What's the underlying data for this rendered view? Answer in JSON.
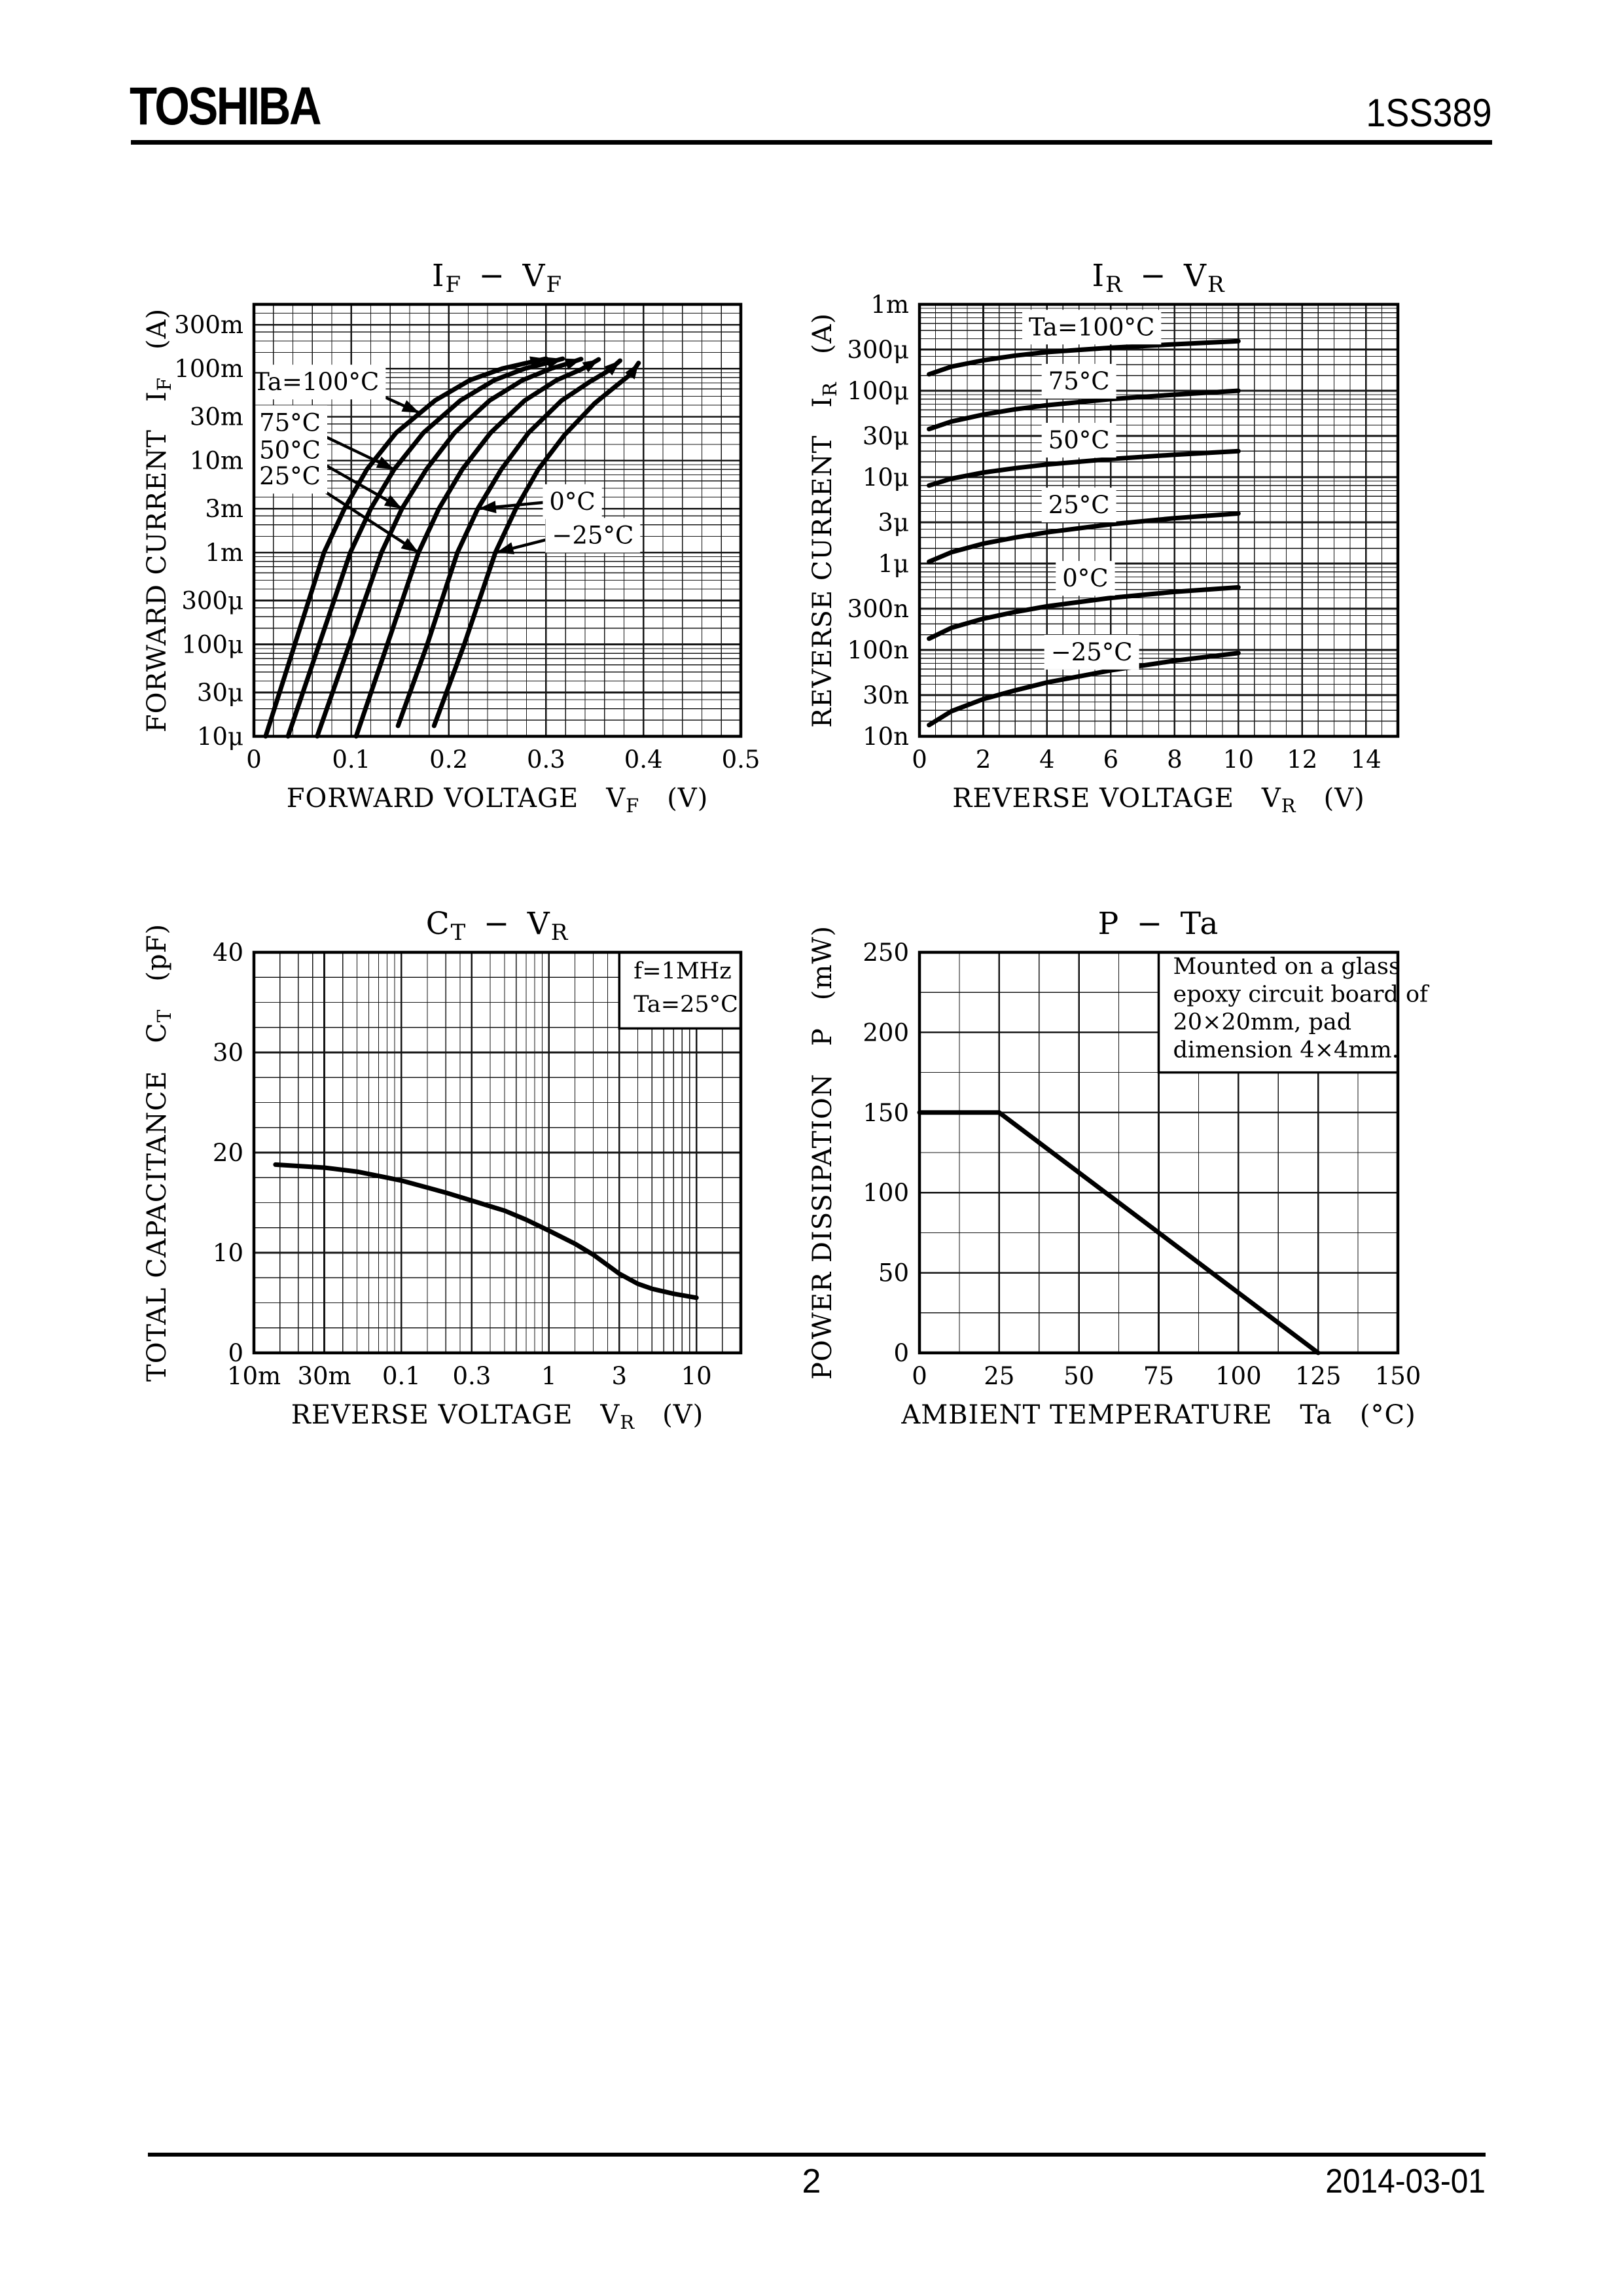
{
  "header": {
    "logo": "TOSHIBA",
    "part_number": "1SS389"
  },
  "footer": {
    "page_number": "2",
    "date": "2014-03-01"
  },
  "colors": {
    "ink": "#000000",
    "paper": "#ffffff",
    "grid": "#161616"
  },
  "chart_data": [
    {
      "id": "if-vf",
      "type": "line",
      "title": "I~F~ − V~F~",
      "x": {
        "scale": "linear",
        "min": 0,
        "max": 0.5,
        "minor": 0.02,
        "major": 0.1,
        "label": "FORWARD VOLTAGE  V~F~  (V)",
        "ticks": [
          {
            "v": 0,
            "label": "0"
          },
          {
            "v": 0.1,
            "label": "0.1"
          },
          {
            "v": 0.2,
            "label": "0.2"
          },
          {
            "v": 0.3,
            "label": "0.3"
          },
          {
            "v": 0.4,
            "label": "0.4"
          },
          {
            "v": 0.5,
            "label": "0.5"
          }
        ]
      },
      "y": {
        "scale": "log",
        "min": 1e-05,
        "max": 0.5,
        "label": "FORWARD CURRENT  I~F~  (A)",
        "ticks": [
          {
            "v": 0.3,
            "label": "300m"
          },
          {
            "v": 0.1,
            "label": "100m"
          },
          {
            "v": 0.03,
            "label": "30m"
          },
          {
            "v": 0.01,
            "label": "10m"
          },
          {
            "v": 0.003,
            "label": "3m"
          },
          {
            "v": 0.001,
            "label": "1m"
          },
          {
            "v": 0.0003,
            "label": "300μ"
          },
          {
            "v": 0.0001,
            "label": "100μ"
          },
          {
            "v": 3e-05,
            "label": "30μ"
          },
          {
            "v": 1e-05,
            "label": "10μ"
          }
        ]
      },
      "series": [
        {
          "name": "Ta=100°C",
          "arrow": true,
          "points": [
            [
              0.012,
              1e-05
            ],
            [
              0.042,
              0.0001
            ],
            [
              0.072,
              0.001
            ],
            [
              0.093,
              0.003
            ],
            [
              0.116,
              0.008
            ],
            [
              0.146,
              0.02
            ],
            [
              0.186,
              0.045
            ],
            [
              0.222,
              0.075
            ],
            [
              0.255,
              0.1
            ],
            [
              0.28,
              0.115
            ],
            [
              0.3,
              0.128
            ]
          ]
        },
        {
          "name": "75°C",
          "arrow": true,
          "points": [
            [
              0.035,
              1e-05
            ],
            [
              0.067,
              0.0001
            ],
            [
              0.099,
              0.001
            ],
            [
              0.12,
              0.003
            ],
            [
              0.144,
              0.008
            ],
            [
              0.174,
              0.02
            ],
            [
              0.212,
              0.045
            ],
            [
              0.247,
              0.075
            ],
            [
              0.278,
              0.1
            ],
            [
              0.301,
              0.115
            ],
            [
              0.317,
              0.128
            ]
          ]
        },
        {
          "name": "50°C",
          "arrow": true,
          "points": [
            [
              0.065,
              1e-05
            ],
            [
              0.098,
              0.0001
            ],
            [
              0.131,
              0.001
            ],
            [
              0.152,
              0.003
            ],
            [
              0.177,
              0.008
            ],
            [
              0.206,
              0.02
            ],
            [
              0.242,
              0.045
            ],
            [
              0.276,
              0.075
            ],
            [
              0.305,
              0.1
            ],
            [
              0.323,
              0.114
            ],
            [
              0.336,
              0.127
            ]
          ]
        },
        {
          "name": "25°C",
          "arrow": true,
          "points": [
            [
              0.105,
              1e-05
            ],
            [
              0.137,
              0.0001
            ],
            [
              0.169,
              0.001
            ],
            [
              0.19,
              0.003
            ],
            [
              0.214,
              0.008
            ],
            [
              0.243,
              0.02
            ],
            [
              0.278,
              0.045
            ],
            [
              0.311,
              0.075
            ],
            [
              0.336,
              0.098
            ],
            [
              0.346,
              0.112
            ],
            [
              0.354,
              0.126
            ]
          ]
        },
        {
          "name": "0°C",
          "arrow": true,
          "points": [
            [
              0.148,
              1.3e-05
            ],
            [
              0.178,
              0.0001
            ],
            [
              0.209,
              0.001
            ],
            [
              0.23,
              0.003
            ],
            [
              0.254,
              0.008
            ],
            [
              0.282,
              0.02
            ],
            [
              0.316,
              0.045
            ],
            [
              0.345,
              0.072
            ],
            [
              0.362,
              0.092
            ],
            [
              0.369,
              0.105
            ],
            [
              0.376,
              0.122
            ]
          ]
        },
        {
          "name": "−25°C",
          "arrow": true,
          "points": [
            [
              0.185,
              1.3e-05
            ],
            [
              0.216,
              0.0001
            ],
            [
              0.248,
              0.001
            ],
            [
              0.269,
              0.003
            ],
            [
              0.292,
              0.008
            ],
            [
              0.319,
              0.019
            ],
            [
              0.35,
              0.042
            ],
            [
              0.372,
              0.065
            ],
            [
              0.384,
              0.082
            ],
            [
              0.39,
              0.096
            ],
            [
              0.395,
              0.115
            ]
          ]
        }
      ],
      "curve_labels": [
        {
          "text": "Ta=100°C",
          "x": 0.064,
          "y": 0.072,
          "arrow": {
            "from": [
              0.116,
              0.06
            ],
            "to": [
              0.17,
              0.033
            ]
          }
        },
        {
          "text": "75°C",
          "x": 0.037,
          "y": 0.026,
          "arrow": {
            "from": [
              0.057,
              0.022
            ],
            "to": [
              0.144,
              0.008
            ]
          }
        },
        {
          "text": "50°C",
          "x": 0.037,
          "y": 0.013,
          "arrow": {
            "from": [
              0.057,
              0.0112
            ],
            "to": [
              0.152,
              0.003
            ]
          }
        },
        {
          "text": "25°C",
          "x": 0.037,
          "y": 0.0068,
          "arrow": {
            "from": [
              0.057,
              0.0059
            ],
            "to": [
              0.169,
              0.001
            ]
          }
        },
        {
          "text": "0°C",
          "x": 0.327,
          "y": 0.0036,
          "arrow": {
            "from": [
              0.298,
              0.0035
            ],
            "to": [
              0.231,
              0.003
            ]
          }
        },
        {
          "text": "−25°C",
          "x": 0.348,
          "y": 0.00155,
          "arrow": {
            "from": [
              0.303,
              0.0014
            ],
            "to": [
              0.249,
              0.001
            ]
          }
        }
      ]
    },
    {
      "id": "ir-vr",
      "type": "line",
      "title": "I~R~ − V~R~",
      "x": {
        "scale": "linear",
        "min": 0,
        "max": 15,
        "minor": 0.5,
        "major": 2,
        "label": "REVERSE VOLTAGE  V~R~  (V)",
        "ticks": [
          {
            "v": 0,
            "label": "0"
          },
          {
            "v": 2,
            "label": "2"
          },
          {
            "v": 4,
            "label": "4"
          },
          {
            "v": 6,
            "label": "6"
          },
          {
            "v": 8,
            "label": "8"
          },
          {
            "v": 10,
            "label": "10"
          },
          {
            "v": 12,
            "label": "12"
          },
          {
            "v": 14,
            "label": "14"
          }
        ]
      },
      "y": {
        "scale": "log",
        "min": 1e-08,
        "max": 0.001,
        "label": "REVERSE CURRENT  I~R~  (A)",
        "ticks": [
          {
            "v": 0.001,
            "label": "1m"
          },
          {
            "v": 0.0003,
            "label": "300μ"
          },
          {
            "v": 0.0001,
            "label": "100μ"
          },
          {
            "v": 3e-05,
            "label": "30μ"
          },
          {
            "v": 1e-05,
            "label": "10μ"
          },
          {
            "v": 3e-06,
            "label": "3μ"
          },
          {
            "v": 1e-06,
            "label": "1μ"
          },
          {
            "v": 3e-07,
            "label": "300n"
          },
          {
            "v": 1e-07,
            "label": "100n"
          },
          {
            "v": 3e-08,
            "label": "30n"
          },
          {
            "v": 1e-08,
            "label": "10n"
          }
        ]
      },
      "series": [
        {
          "name": "Ta=100°C",
          "points": [
            [
              0.3,
              0.000155
            ],
            [
              1,
              0.00019
            ],
            [
              2,
              0.000225
            ],
            [
              3,
              0.000255
            ],
            [
              4,
              0.00028
            ],
            [
              6,
              0.000315
            ],
            [
              8,
              0.000345
            ],
            [
              10,
              0.000375
            ]
          ]
        },
        {
          "name": "75°C",
          "points": [
            [
              0.3,
              3.6e-05
            ],
            [
              1,
              4.4e-05
            ],
            [
              2,
              5.3e-05
            ],
            [
              3,
              6.1e-05
            ],
            [
              4,
              6.8e-05
            ],
            [
              6,
              8e-05
            ],
            [
              8,
              9e-05
            ],
            [
              10,
              0.0001
            ]
          ]
        },
        {
          "name": "50°C",
          "points": [
            [
              0.3,
              8e-06
            ],
            [
              1,
              9.6e-06
            ],
            [
              2,
              1.13e-05
            ],
            [
              3,
              1.27e-05
            ],
            [
              4,
              1.4e-05
            ],
            [
              6,
              1.62e-05
            ],
            [
              8,
              1.82e-05
            ],
            [
              10,
              2e-05
            ]
          ]
        },
        {
          "name": "25°C",
          "points": [
            [
              0.3,
              1.05e-06
            ],
            [
              1,
              1.35e-06
            ],
            [
              2,
              1.7e-06
            ],
            [
              3,
              2e-06
            ],
            [
              4,
              2.3e-06
            ],
            [
              6,
              2.85e-06
            ],
            [
              8,
              3.35e-06
            ],
            [
              10,
              3.8e-06
            ]
          ]
        },
        {
          "name": "0°C",
          "points": [
            [
              0.3,
              1.35e-07
            ],
            [
              1,
              1.8e-07
            ],
            [
              2,
              2.3e-07
            ],
            [
              3,
              2.75e-07
            ],
            [
              4,
              3.2e-07
            ],
            [
              6,
              4e-07
            ],
            [
              8,
              4.7e-07
            ],
            [
              10,
              5.3e-07
            ]
          ]
        },
        {
          "name": "−25°C",
          "points": [
            [
              0.3,
              1.35e-08
            ],
            [
              1,
              1.95e-08
            ],
            [
              2,
              2.7e-08
            ],
            [
              3,
              3.4e-08
            ],
            [
              4,
              4.2e-08
            ],
            [
              6,
              5.8e-08
            ],
            [
              8,
              7.5e-08
            ],
            [
              10,
              9.2e-08
            ]
          ]
        }
      ],
      "curve_labels": [
        {
          "text": "Ta=100°C",
          "x": 5.4,
          "y": 0.00055
        },
        {
          "text": "75°C",
          "x": 5.0,
          "y": 0.00013
        },
        {
          "text": "50°C",
          "x": 5.0,
          "y": 2.7e-05
        },
        {
          "text": "25°C",
          "x": 5.0,
          "y": 4.8e-06
        },
        {
          "text": "0°C",
          "x": 5.2,
          "y": 6.8e-07
        },
        {
          "text": "−25°C",
          "x": 5.4,
          "y": 9.5e-08
        }
      ]
    },
    {
      "id": "ct-vr",
      "type": "line",
      "title": "C~T~ − V~R~",
      "x": {
        "scale": "log",
        "min": 0.01,
        "max": 20,
        "label": "REVERSE VOLTAGE  V~R~  (V)",
        "ticks": [
          {
            "v": 0.01,
            "label": "10m"
          },
          {
            "v": 0.03,
            "label": "30m"
          },
          {
            "v": 0.1,
            "label": "0.1"
          },
          {
            "v": 0.3,
            "label": "0.3"
          },
          {
            "v": 1,
            "label": "1"
          },
          {
            "v": 3,
            "label": "3"
          },
          {
            "v": 10,
            "label": "10"
          }
        ]
      },
      "y": {
        "scale": "linear",
        "min": 0,
        "max": 40,
        "minor": 2.5,
        "major": 10,
        "label": "TOTAL CAPACITANCE  C~T~  (pF)",
        "ticks": [
          {
            "v": 0,
            "label": "0"
          },
          {
            "v": 10,
            "label": "10"
          },
          {
            "v": 20,
            "label": "20"
          },
          {
            "v": 30,
            "label": "30"
          },
          {
            "v": 40,
            "label": "40"
          }
        ]
      },
      "series": [
        {
          "name": "CT",
          "points": [
            [
              0.014,
              18.8
            ],
            [
              0.03,
              18.5
            ],
            [
              0.05,
              18.1
            ],
            [
              0.08,
              17.5
            ],
            [
              0.1,
              17.2
            ],
            [
              0.15,
              16.5
            ],
            [
              0.2,
              16.0
            ],
            [
              0.3,
              15.2
            ],
            [
              0.5,
              14.2
            ],
            [
              0.7,
              13.3
            ],
            [
              1,
              12.2
            ],
            [
              1.5,
              10.9
            ],
            [
              2,
              9.8
            ],
            [
              3,
              7.9
            ],
            [
              4,
              6.9
            ],
            [
              5,
              6.4
            ],
            [
              7,
              5.9
            ],
            [
              10,
              5.5
            ]
          ]
        }
      ],
      "curve_labels": [],
      "note": {
        "x1": 3,
        "x2": 20,
        "y1": 40,
        "y2": 32.4,
        "lines": [
          "f=1MHz",
          "Ta=25°C"
        ]
      }
    },
    {
      "id": "p-ta",
      "type": "line",
      "title": "P − Ta",
      "x": {
        "scale": "linear",
        "min": 0,
        "max": 150,
        "minor": 12.5,
        "major": 25,
        "label": "AMBIENT TEMPERATURE  Ta  (°C)",
        "ticks": [
          {
            "v": 0,
            "label": "0"
          },
          {
            "v": 25,
            "label": "25"
          },
          {
            "v": 50,
            "label": "50"
          },
          {
            "v": 75,
            "label": "75"
          },
          {
            "v": 100,
            "label": "100"
          },
          {
            "v": 125,
            "label": "125"
          },
          {
            "v": 150,
            "label": "150"
          }
        ]
      },
      "y": {
        "scale": "linear",
        "min": 0,
        "max": 250,
        "minor": 25,
        "major": 50,
        "label": "POWER DISSIPATION  P  (mW)",
        "ticks": [
          {
            "v": 0,
            "label": "0"
          },
          {
            "v": 50,
            "label": "50"
          },
          {
            "v": 100,
            "label": "100"
          },
          {
            "v": 150,
            "label": "150"
          },
          {
            "v": 200,
            "label": "200"
          },
          {
            "v": 250,
            "label": "250"
          }
        ]
      },
      "series": [
        {
          "name": "P(Ta)",
          "points": [
            [
              0,
              150
            ],
            [
              25,
              150
            ],
            [
              125,
              0
            ]
          ]
        }
      ],
      "curve_labels": [],
      "note": {
        "x1": 75,
        "x2": 150,
        "y1": 250,
        "y2": 175,
        "lines": [
          "Mounted on a glass",
          "epoxy circuit board of",
          "20×20mm, pad",
          "dimension 4×4mm."
        ]
      }
    }
  ]
}
